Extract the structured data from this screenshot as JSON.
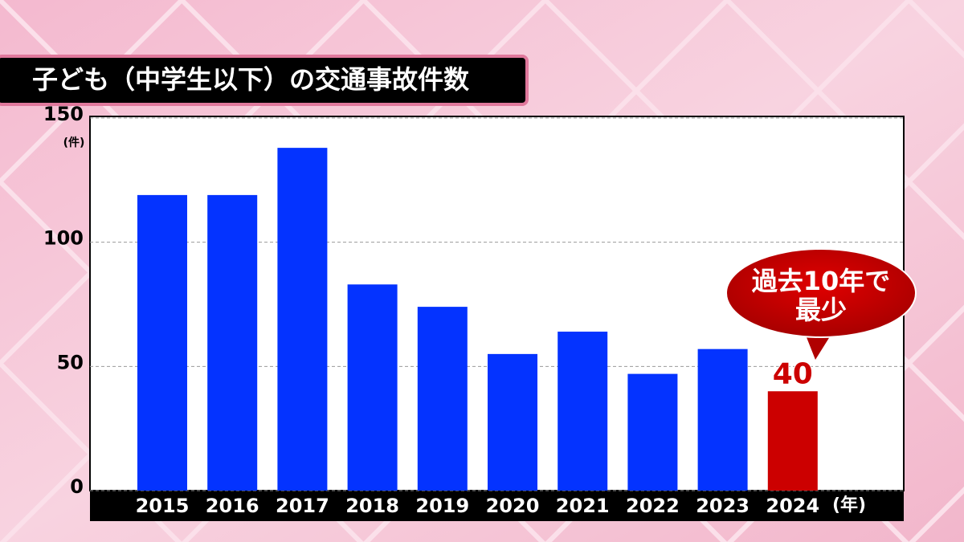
{
  "chart_data": {
    "type": "bar",
    "title": "子ども（中学生以下）の交通事故件数",
    "categories": [
      "2015",
      "2016",
      "2017",
      "2018",
      "2019",
      "2020",
      "2021",
      "2022",
      "2023",
      "2024"
    ],
    "values": [
      119,
      119,
      138,
      83,
      74,
      55,
      64,
      47,
      57,
      40
    ],
    "colors": [
      "#0433ff",
      "#0433ff",
      "#0433ff",
      "#0433ff",
      "#0433ff",
      "#0433ff",
      "#0433ff",
      "#0433ff",
      "#0433ff",
      "#cc0000"
    ],
    "ylim": [
      0,
      150
    ],
    "yticks": [
      0,
      50,
      100,
      150
    ],
    "grid": true,
    "y_unit": "(件)",
    "x_unit": "(年)",
    "annotation": [
      "過去10年で",
      "最少"
    ]
  }
}
